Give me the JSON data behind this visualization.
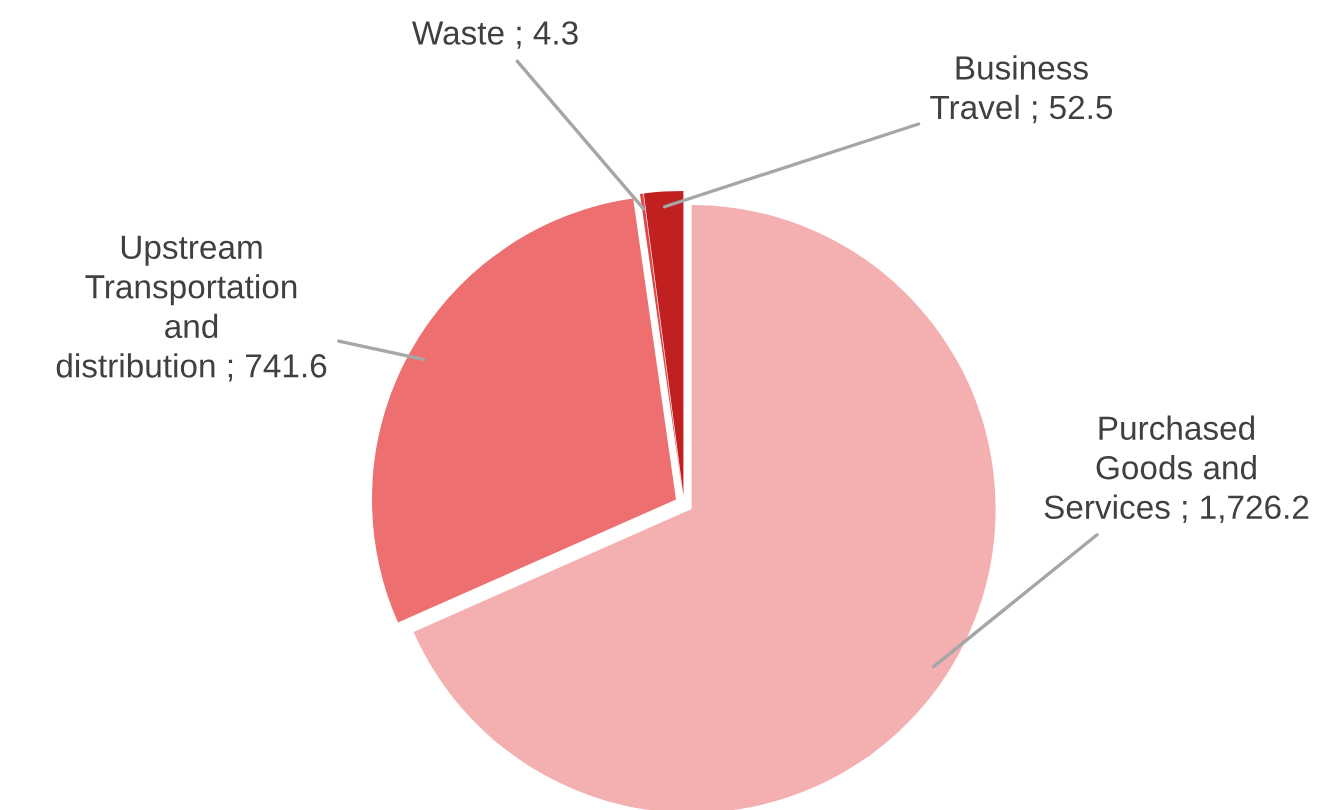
{
  "chart_data": {
    "type": "pie",
    "categories": [
      "Purchased Goods and Services",
      "Upstream Transportation and distribution",
      "Waste",
      "Business Travel"
    ],
    "values": [
      1726.2,
      741.6,
      4.3,
      52.5
    ],
    "value_labels": [
      "1,726.2",
      "741.6",
      "4.3",
      "52.5"
    ],
    "colors": [
      "#f4b0b0",
      "#ee6f6f",
      "#e04848",
      "#c0201f"
    ],
    "legend": false
  }
}
